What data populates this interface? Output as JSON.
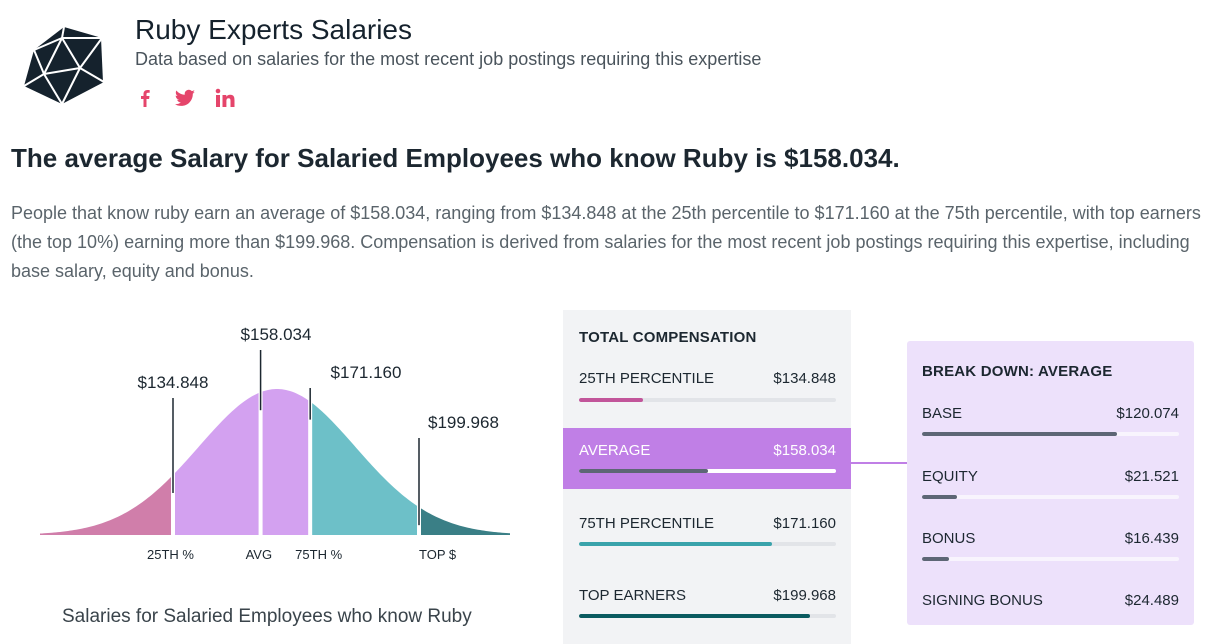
{
  "header": {
    "title": "Ruby Experts Salaries",
    "subtitle": "Data based on salaries for the most recent job postings requiring this expertise",
    "logo_icon": "ruby-gem-icon",
    "socials": [
      {
        "name": "facebook-icon"
      },
      {
        "name": "twitter-icon"
      },
      {
        "name": "linkedin-icon"
      }
    ],
    "social_color": "#e5456b"
  },
  "headline": "The average Salary for Salaried Employees who know Ruby is $158.034.",
  "description": "People that know ruby earn an average of $158.034, ranging from $134.848 at the 25th percentile to $171.160 at the 75th percentile, with top earners (the top 10%) earning more than $199.968. Compensation is derived from salaries for the most recent job postings requiring this expertise, including base salary, equity and bonus.",
  "chart_data": {
    "type": "area",
    "title": "Salaries for Salaried Employees who know Ruby",
    "markers": [
      {
        "label": "25TH %",
        "value": 134848,
        "value_label": "$134.848"
      },
      {
        "label": "AVG",
        "value": 158034,
        "value_label": "$158.034"
      },
      {
        "label": "75TH %",
        "value": 171160,
        "value_label": "$171.160"
      },
      {
        "label": "TOP $",
        "value": 199968,
        "value_label": "$199.968"
      }
    ],
    "segment_colors": [
      "#d07eaa",
      "#d3a1f0",
      "#6dc0c8",
      "#3a7f86"
    ]
  },
  "total_compensation": {
    "title": "TOTAL COMPENSATION",
    "rows": [
      {
        "label": "25TH PERCENTILE",
        "value": "$134.848",
        "fill": 0.25,
        "color": "#c2559a",
        "active": false
      },
      {
        "label": "AVERAGE",
        "value": "$158.034",
        "fill": 0.5,
        "color": "#5d6675",
        "active": true
      },
      {
        "label": "75TH PERCENTILE",
        "value": "$171.160",
        "fill": 0.75,
        "color": "#3aa3ab",
        "active": false
      },
      {
        "label": "TOP EARNERS",
        "value": "$199.968",
        "fill": 0.9,
        "color": "#0b5b60",
        "active": false
      }
    ]
  },
  "breakdown": {
    "title": "BREAK DOWN: AVERAGE",
    "rows": [
      {
        "label": "BASE",
        "value": "$120.074",
        "fill": 0.76
      },
      {
        "label": "EQUITY",
        "value": "$21.521",
        "fill": 0.136
      },
      {
        "label": "BONUS",
        "value": "$16.439",
        "fill": 0.104
      },
      {
        "label": "SIGNING BONUS",
        "value": "$24.489",
        "fill": 0
      }
    ]
  }
}
